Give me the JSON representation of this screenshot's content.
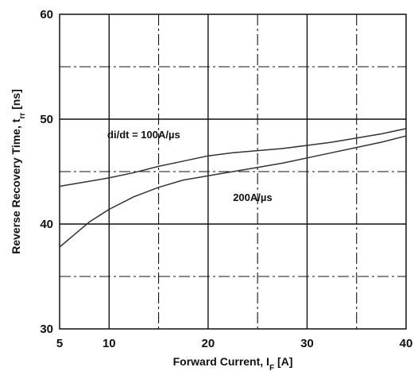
{
  "chart_data": {
    "type": "line",
    "xlabel": "Forward Current, I",
    "xlabel_sub": "F",
    "xlabel_unit": " [A]",
    "ylabel": "Reverse Recovery Time, t",
    "ylabel_sub": "rr",
    "ylabel_unit": " [ns]",
    "xlim": [
      5,
      40
    ],
    "ylim": [
      30,
      60
    ],
    "x_ticks": [
      "5",
      "10",
      "20",
      "30",
      "40"
    ],
    "y_ticks": [
      "30",
      "40",
      "50",
      "60"
    ],
    "grid": true,
    "series": [
      {
        "name": "di/dt = 100A/µs",
        "x": [
          5,
          7.5,
          10,
          12.5,
          15,
          17.5,
          20,
          22.5,
          25,
          27.5,
          30,
          32.5,
          35,
          37.5,
          40
        ],
        "values": [
          43.6,
          44.0,
          44.4,
          44.9,
          45.5,
          46.0,
          46.5,
          46.8,
          47.0,
          47.2,
          47.5,
          47.8,
          48.2,
          48.6,
          49.1
        ]
      },
      {
        "name": "200A/µs",
        "x": [
          5,
          6.5,
          8,
          10,
          12.5,
          15,
          17.5,
          20,
          22.5,
          25,
          27.5,
          30,
          32.5,
          35,
          37.5,
          40
        ],
        "values": [
          37.8,
          39.0,
          40.2,
          41.4,
          42.6,
          43.5,
          44.2,
          44.6,
          45.0,
          45.4,
          45.8,
          46.3,
          46.8,
          47.3,
          47.8,
          48.4
        ]
      }
    ],
    "annotations": [
      {
        "text": "di/dt = 100A/µs",
        "x": 13.5,
        "y": 48.2
      },
      {
        "text": "200A/µs",
        "x": 24.5,
        "y": 42.2
      }
    ],
    "line_color": "#333333",
    "grid_color": "#111111"
  }
}
